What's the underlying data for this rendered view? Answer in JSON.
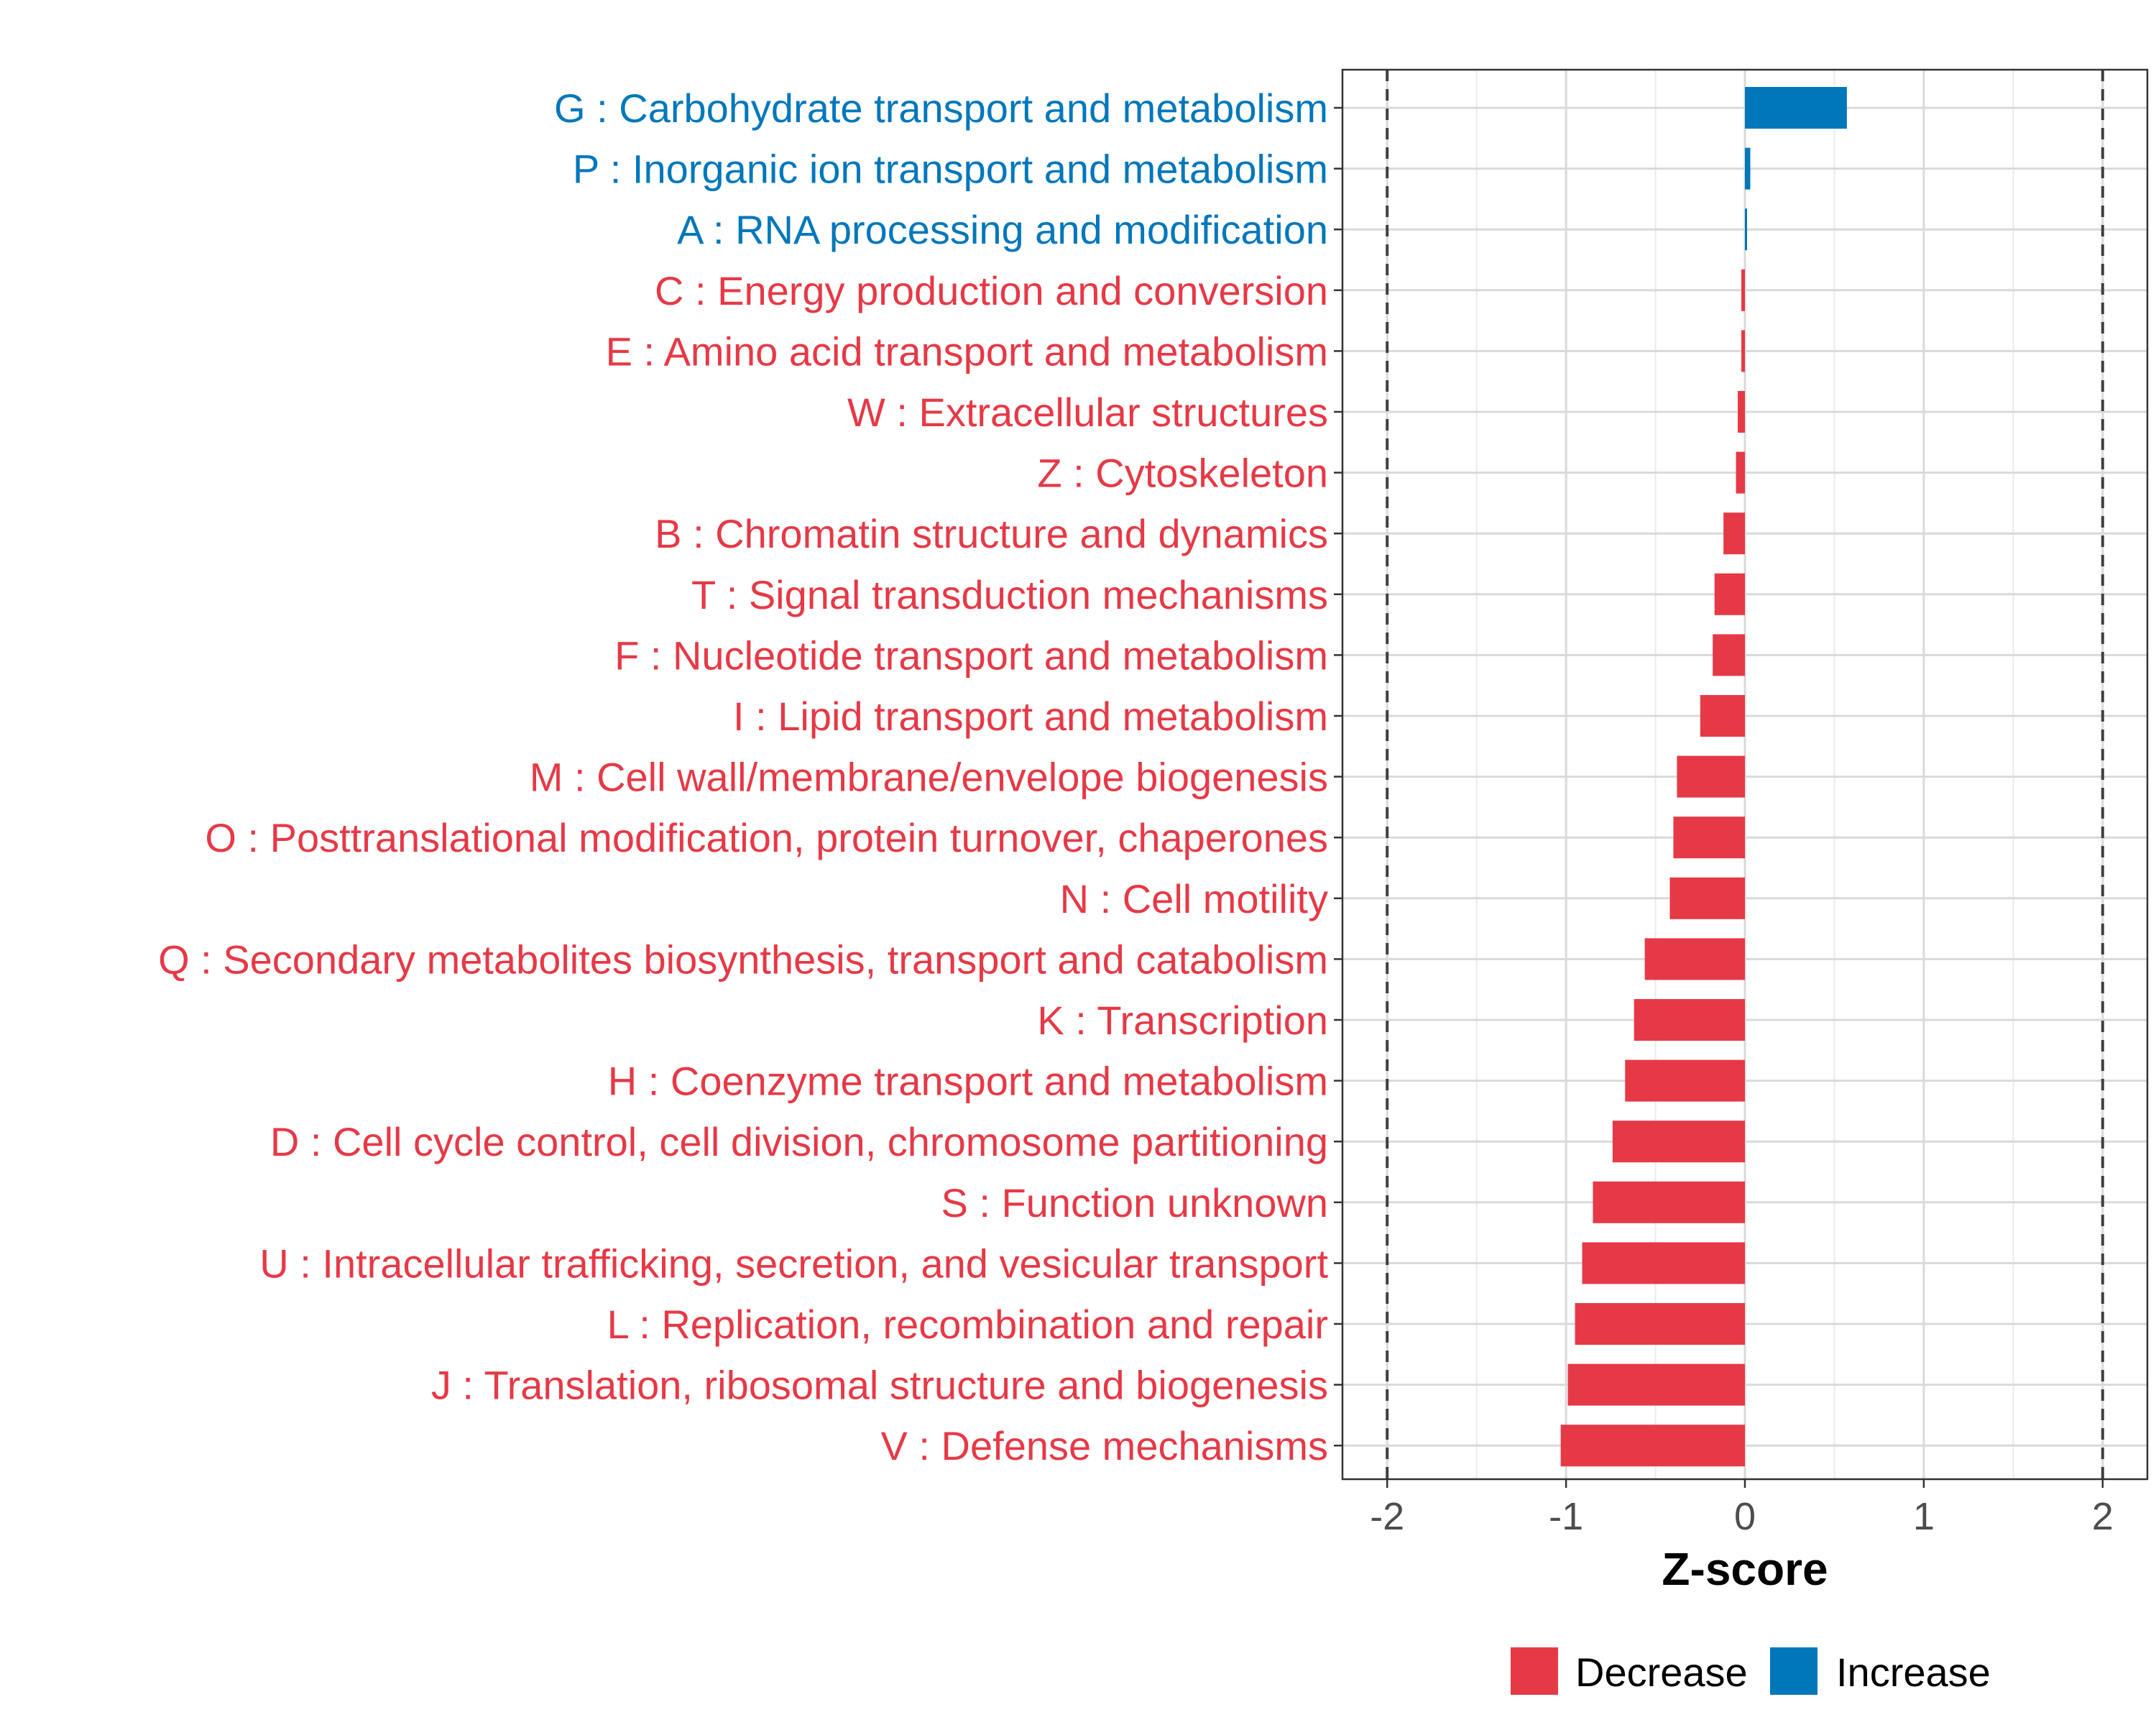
{
  "chart_data": {
    "type": "bar",
    "orientation": "horizontal",
    "xlabel": "Z-score",
    "ylabel": "",
    "xlim": [
      -2.25,
      2.25
    ],
    "xticks": [
      -2,
      -1,
      0,
      1,
      2
    ],
    "xtick_labels": [
      "-2",
      "-1",
      "0",
      "1",
      "2"
    ],
    "reference_lines": [
      -2,
      2
    ],
    "grid": true,
    "categories": [
      "G : Carbohydrate transport and metabolism",
      "P : Inorganic ion transport and metabolism",
      "A : RNA processing and modification",
      "C : Energy production and conversion",
      "E : Amino acid transport and metabolism",
      "W : Extracellular structures",
      "Z : Cytoskeleton",
      "B : Chromatin structure and dynamics",
      "T : Signal transduction mechanisms",
      "F : Nucleotide transport and metabolism",
      "I : Lipid transport and metabolism",
      "M : Cell wall/membrane/envelope biogenesis",
      "O : Posttranslational modification, protein turnover, chaperones",
      "N : Cell motility",
      "Q : Secondary metabolites biosynthesis, transport and catabolism",
      "K : Transcription",
      "H : Coenzyme transport and metabolism",
      "D : Cell cycle control, cell division, chromosome partitioning",
      "S : Function unknown",
      "U : Intracellular trafficking, secretion, and vesicular transport",
      "L : Replication, recombination and repair",
      "J : Translation, ribosomal structure and biogenesis",
      "V : Defense mechanisms"
    ],
    "values": [
      0.57,
      0.03,
      0.01,
      -0.02,
      -0.02,
      -0.04,
      -0.05,
      -0.12,
      -0.17,
      -0.18,
      -0.25,
      -0.38,
      -0.4,
      -0.42,
      -0.56,
      -0.62,
      -0.67,
      -0.74,
      -0.85,
      -0.91,
      -0.95,
      -0.99,
      -1.03
    ],
    "legend": [
      {
        "label": "Decrease",
        "color": "#E63946"
      },
      {
        "label": "Increase",
        "color": "#0077BB"
      }
    ],
    "legend_position": "bottom"
  }
}
